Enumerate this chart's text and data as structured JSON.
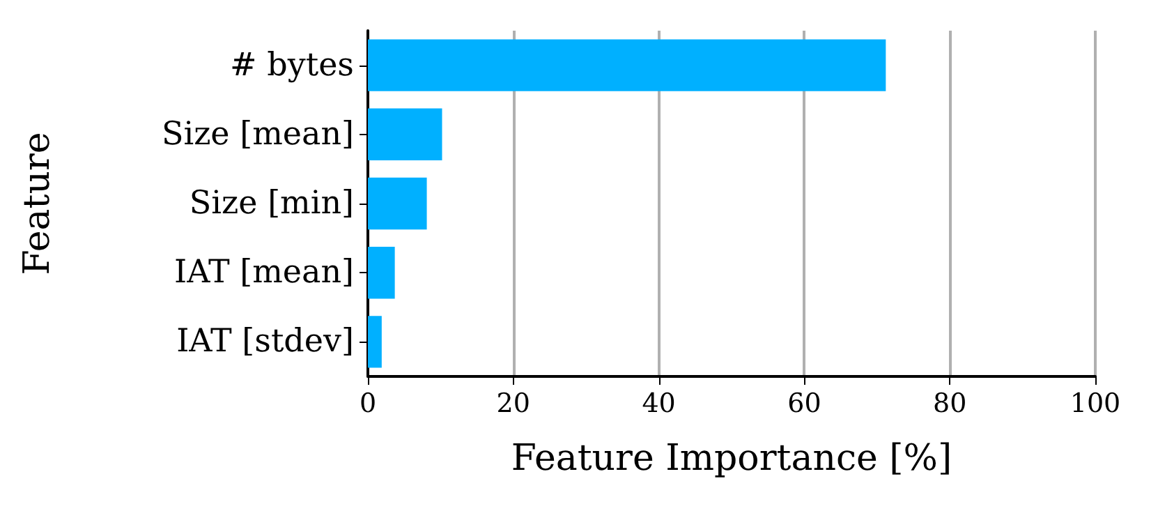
{
  "chart_data": {
    "type": "bar",
    "orientation": "horizontal",
    "xlabel": "Feature Importance [%]",
    "ylabel": "Feature",
    "categories": [
      "# bytes",
      "Size [mean]",
      "Size [min]",
      "IAT [mean]",
      "IAT [stdev]"
    ],
    "values": [
      71.2,
      10.2,
      8.1,
      3.7,
      1.9
    ],
    "color": "#00b0ff",
    "xlim": [
      0,
      100
    ],
    "xticks": [
      0,
      20,
      40,
      60,
      80,
      100
    ],
    "grid": "x"
  }
}
